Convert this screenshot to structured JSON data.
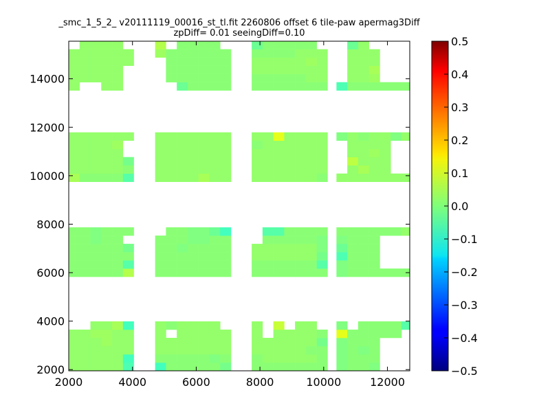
{
  "chart_data": {
    "type": "heatmap",
    "title_lines": [
      "_smc_1_5_2_ v20111119_00016_st_tl.fit 2260806 offset 6 tile-paw apermag3Diff",
      "zpDiff= 0.01 seeingDiff=0.10"
    ],
    "xlabel": "",
    "ylabel": "",
    "xlim": [
      2000,
      12700
    ],
    "ylim": [
      1950,
      15550
    ],
    "xticks": [
      2000,
      4000,
      6000,
      8000,
      10000,
      12000
    ],
    "yticks": [
      2000,
      4000,
      6000,
      8000,
      10000,
      12000,
      14000
    ],
    "colorbar": {
      "range": [
        -0.5,
        0.5
      ],
      "ticks": [
        "0.5",
        "0.4",
        "0.3",
        "0.2",
        "0.1",
        "0.0",
        "−0.1",
        "−0.2",
        "−0.3",
        "−0.4",
        "−0.5"
      ],
      "colormap": "jet"
    },
    "cell_size": 340,
    "x_starts": [
      2000,
      2340,
      2680,
      3020,
      3360,
      3700,
      4040,
      4710,
      5050,
      5390,
      5730,
      6070,
      6410,
      6750,
      7740,
      8080,
      8420,
      8760,
      9100,
      9440,
      9780,
      10400,
      10740,
      11080,
      11420,
      11760,
      12100,
      12440
    ],
    "y_starts": [
      1950,
      2290,
      2630,
      2970,
      3310,
      3650,
      5830,
      6170,
      6510,
      6850,
      7190,
      7530,
      9750,
      10090,
      10430,
      10770,
      11110,
      11450,
      13520,
      13860,
      14200,
      14540,
      14880,
      15220
    ],
    "grid_values": [
      [
        0.02,
        0.02,
        0.02,
        0.02,
        0.02,
        -0.05,
        null,
        -0.06,
        0.01,
        0.01,
        0.01,
        0.01,
        0.01,
        -0.01,
        0.01,
        0.01,
        0.01,
        0.01,
        0.01,
        0.01,
        0.01,
        0.0,
        0.01,
        0.01,
        0.0,
        null,
        null,
        null
      ],
      [
        0.02,
        0.02,
        0.02,
        0.02,
        0.02,
        -0.06,
        null,
        0.01,
        0.01,
        0.01,
        0.01,
        0.01,
        0.0,
        0.01,
        0.01,
        0.02,
        0.02,
        0.02,
        0.02,
        0.02,
        0.01,
        0.0,
        0.01,
        0.01,
        0.01,
        null,
        null,
        null
      ],
      [
        0.02,
        0.02,
        0.02,
        0.02,
        0.02,
        0.02,
        null,
        0.02,
        0.02,
        0.02,
        0.02,
        0.02,
        0.02,
        0.02,
        0.02,
        0.02,
        0.02,
        0.02,
        0.02,
        0.01,
        0.01,
        0.0,
        0.01,
        0.0,
        0.01,
        null,
        null,
        null
      ],
      [
        0.02,
        0.02,
        0.02,
        0.03,
        0.02,
        0.02,
        null,
        0.02,
        0.02,
        0.02,
        0.02,
        0.02,
        0.02,
        0.02,
        0.02,
        0.02,
        0.02,
        0.02,
        0.02,
        0.02,
        -0.01,
        0.0,
        0.01,
        0.01,
        0.01,
        null,
        null,
        null
      ],
      [
        0.02,
        0.02,
        0.03,
        0.03,
        0.02,
        0.02,
        null,
        0.02,
        null,
        0.02,
        0.02,
        0.02,
        0.02,
        0.02,
        0.02,
        null,
        0.02,
        0.02,
        0.02,
        0.02,
        0.01,
        0.1,
        0.01,
        0.01,
        0.01,
        0.01,
        0.01,
        null
      ],
      [
        null,
        null,
        0.02,
        0.02,
        0.04,
        -0.06,
        null,
        0.02,
        0.01,
        0.02,
        0.02,
        0.02,
        0.02,
        null,
        0.02,
        null,
        0.07,
        null,
        0.02,
        0.02,
        null,
        0.0,
        null,
        0.01,
        0.01,
        0.01,
        0.01,
        -0.04
      ],
      [
        0.01,
        0.01,
        0.01,
        0.01,
        0.01,
        0.05,
        null,
        0.01,
        0.01,
        0.01,
        0.01,
        0.01,
        0.01,
        0.01,
        0.01,
        0.01,
        0.01,
        0.01,
        0.01,
        0.01,
        0.01,
        0.0,
        0.01,
        0.01,
        0.01,
        0.01,
        0.01,
        0.01
      ],
      [
        0.01,
        0.01,
        0.01,
        0.01,
        0.01,
        -0.04,
        null,
        0.01,
        0.01,
        0.01,
        0.01,
        0.01,
        0.01,
        0.01,
        0.01,
        0.01,
        0.01,
        0.01,
        0.01,
        0.01,
        -0.04,
        0.0,
        0.01,
        0.01,
        0.01,
        null,
        null,
        null
      ],
      [
        0.01,
        0.01,
        0.01,
        0.01,
        0.01,
        0.01,
        null,
        0.01,
        0.01,
        0.01,
        0.01,
        0.01,
        0.01,
        0.01,
        0.02,
        0.02,
        0.02,
        0.02,
        0.02,
        0.02,
        -0.01,
        -0.05,
        0.01,
        0.01,
        0.01,
        null,
        null,
        null
      ],
      [
        0.01,
        0.01,
        0.01,
        0.01,
        0.01,
        -0.01,
        null,
        0.01,
        0.01,
        0.0,
        0.01,
        0.01,
        0.01,
        0.01,
        0.02,
        0.02,
        0.02,
        0.02,
        0.02,
        0.02,
        0.0,
        -0.02,
        0.01,
        0.01,
        0.01,
        null,
        null,
        null
      ],
      [
        0.01,
        0.01,
        0.0,
        0.01,
        0.01,
        null,
        null,
        0.01,
        0.01,
        0.01,
        0.0,
        0.0,
        0.01,
        0.01,
        null,
        0.01,
        0.01,
        0.01,
        0.01,
        0.01,
        0.0,
        0.0,
        0.01,
        0.01,
        0.01,
        null,
        null,
        null
      ],
      [
        0.01,
        0.01,
        0.0,
        0.01,
        0.01,
        0.01,
        null,
        null,
        0.01,
        0.01,
        0.0,
        0.0,
        -0.02,
        -0.06,
        null,
        -0.04,
        -0.04,
        0.01,
        0.01,
        0.01,
        0.01,
        0.01,
        0.01,
        0.01,
        0.01,
        0.01,
        0.01,
        0.02
      ],
      [
        0.04,
        0.01,
        0.01,
        0.01,
        0.01,
        -0.04,
        null,
        0.02,
        0.02,
        0.02,
        0.02,
        0.04,
        0.02,
        0.02,
        0.02,
        0.02,
        0.02,
        0.02,
        0.02,
        0.02,
        0.01,
        0.02,
        0.02,
        0.02,
        0.02,
        0.02,
        0.02,
        0.02
      ],
      [
        0.02,
        0.02,
        0.02,
        0.02,
        0.02,
        0.01,
        null,
        0.02,
        0.02,
        0.02,
        0.02,
        0.02,
        0.02,
        0.02,
        0.02,
        0.02,
        0.02,
        0.02,
        0.02,
        0.02,
        0.02,
        null,
        0.02,
        0.04,
        0.02,
        0.02,
        null,
        null
      ],
      [
        0.02,
        0.02,
        0.02,
        0.02,
        0.02,
        -0.01,
        null,
        0.02,
        0.02,
        0.02,
        0.02,
        0.02,
        0.02,
        0.02,
        0.02,
        0.02,
        0.02,
        0.02,
        0.02,
        0.02,
        0.02,
        null,
        0.06,
        0.02,
        0.02,
        0.02,
        null,
        null
      ],
      [
        0.02,
        0.02,
        0.02,
        0.02,
        0.02,
        null,
        null,
        0.02,
        0.02,
        0.02,
        0.02,
        0.02,
        0.02,
        0.02,
        0.02,
        0.02,
        0.02,
        0.02,
        0.02,
        0.02,
        0.02,
        null,
        0.02,
        0.02,
        0.03,
        0.02,
        null,
        null
      ],
      [
        0.02,
        0.02,
        0.02,
        0.02,
        0.03,
        null,
        null,
        0.02,
        0.02,
        0.02,
        0.02,
        0.02,
        0.02,
        0.02,
        0.01,
        0.02,
        0.02,
        0.02,
        0.02,
        0.02,
        0.02,
        null,
        0.02,
        0.02,
        0.02,
        0.02,
        null,
        null
      ],
      [
        0.02,
        0.02,
        0.02,
        0.02,
        0.02,
        0.02,
        null,
        0.02,
        0.02,
        0.02,
        0.02,
        0.02,
        0.02,
        0.02,
        0.02,
        0.02,
        0.1,
        0.02,
        0.02,
        0.02,
        0.02,
        0.0,
        0.02,
        0.01,
        0.02,
        0.02,
        0.0,
        0.02
      ],
      [
        0.02,
        null,
        null,
        0.02,
        0.02,
        null,
        null,
        null,
        null,
        -0.02,
        0.01,
        0.01,
        0.01,
        0.01,
        0.01,
        0.01,
        0.01,
        0.01,
        0.01,
        0.01,
        0.01,
        -0.05,
        0.01,
        0.01,
        0.01,
        0.01,
        0.01,
        0.01
      ],
      [
        0.02,
        0.02,
        0.02,
        0.02,
        0.02,
        null,
        null,
        null,
        0.01,
        0.01,
        0.01,
        0.01,
        0.01,
        0.01,
        0.01,
        0.01,
        0.01,
        0.01,
        0.01,
        0.02,
        0.02,
        null,
        0.02,
        0.02,
        0.03,
        null,
        null,
        null
      ],
      [
        0.02,
        0.02,
        0.02,
        0.02,
        0.02,
        null,
        null,
        null,
        0.01,
        0.01,
        0.01,
        0.01,
        0.01,
        0.01,
        0.02,
        0.02,
        0.02,
        0.02,
        0.02,
        0.02,
        0.02,
        null,
        0.02,
        0.02,
        0.04,
        null,
        null,
        null
      ],
      [
        0.02,
        0.02,
        0.02,
        0.02,
        0.02,
        0.02,
        null,
        null,
        0.01,
        0.01,
        0.01,
        0.01,
        0.01,
        0.01,
        0.02,
        0.02,
        0.02,
        0.02,
        0.02,
        0.03,
        0.02,
        null,
        0.02,
        0.02,
        0.02,
        null,
        null,
        null
      ],
      [
        0.02,
        0.02,
        0.02,
        0.02,
        0.02,
        0.02,
        null,
        0.03,
        0.01,
        0.01,
        0.01,
        0.01,
        0.01,
        0.01,
        0.01,
        0.01,
        0.01,
        0.01,
        0.02,
        0.02,
        0.02,
        null,
        0.02,
        0.02,
        0.02,
        null,
        null,
        null
      ],
      [
        null,
        0.02,
        0.02,
        0.02,
        0.02,
        null,
        null,
        0.05,
        null,
        0.01,
        0.01,
        0.01,
        0.01,
        null,
        -0.02,
        0.01,
        0.01,
        0.01,
        0.01,
        0.01,
        null,
        null,
        -0.02,
        0.02,
        null,
        null,
        null,
        null
      ]
    ]
  }
}
